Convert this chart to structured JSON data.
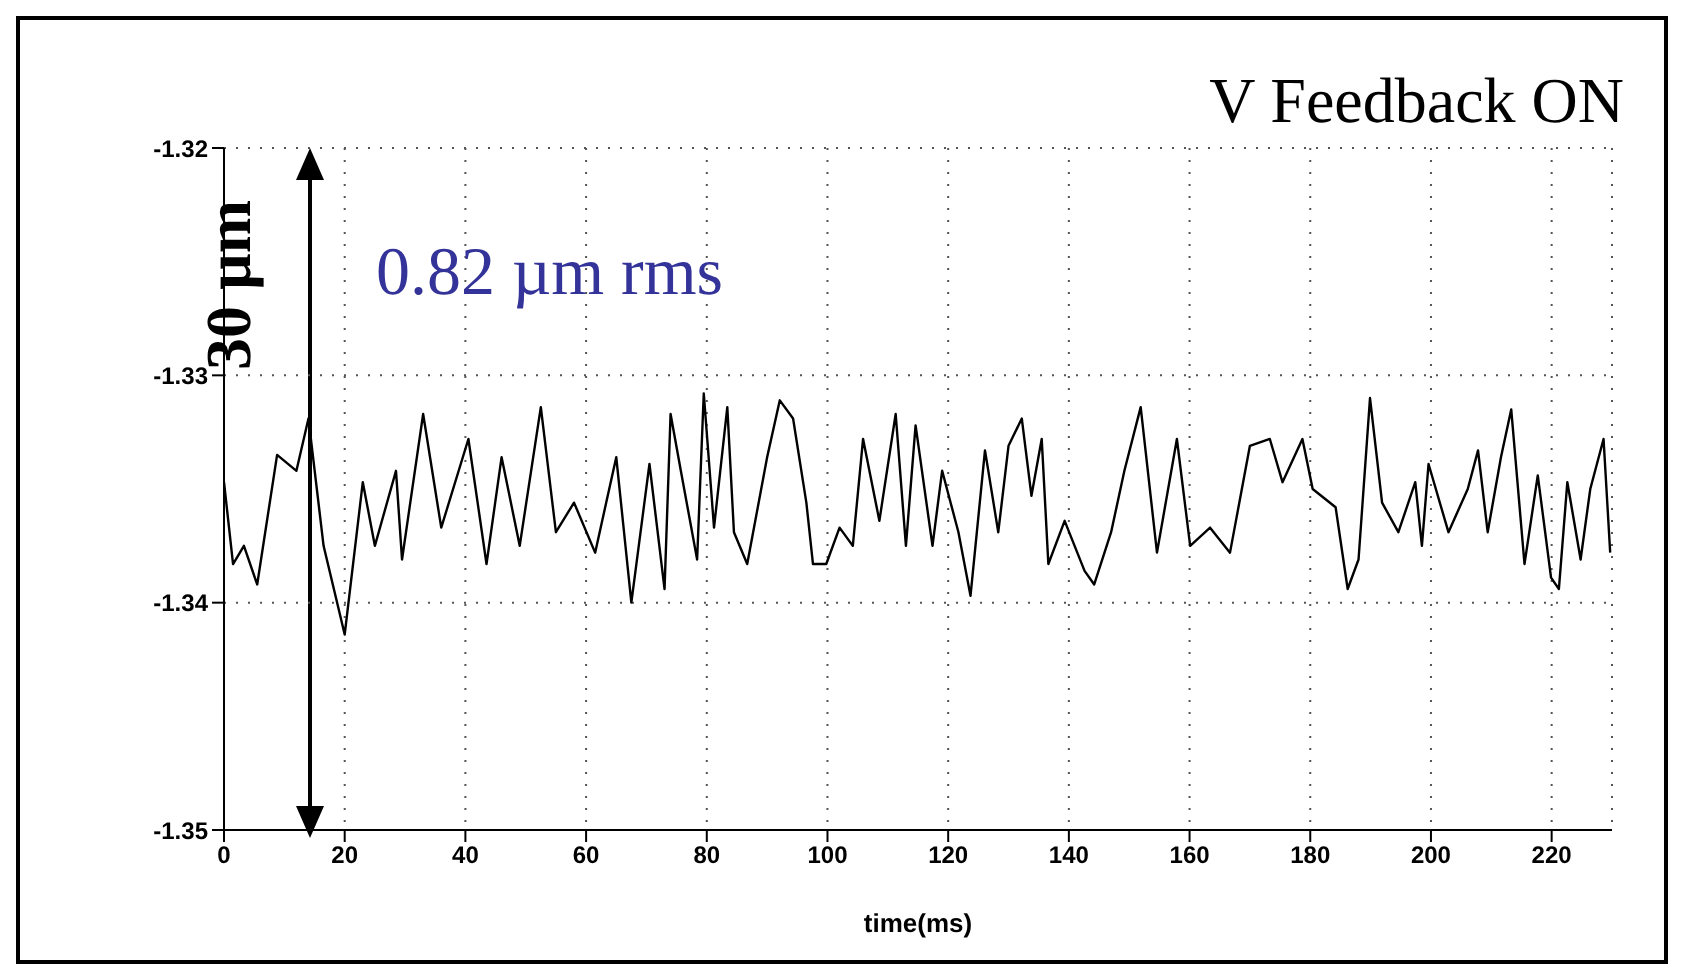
{
  "chart_data": {
    "type": "line",
    "xlabel": "time(ms)",
    "annotations": [
      "V Feedback ON",
      "0.82 µm rms",
      "30 µm"
    ],
    "x": [
      0,
      1.5,
      3.3,
      5.5,
      8.8,
      12,
      14,
      16.5,
      20,
      23,
      25,
      28.5,
      29.5,
      33,
      36,
      40.5,
      43.5,
      46,
      49,
      52.5,
      55,
      58,
      61.5,
      65,
      67.5,
      70.5,
      73,
      74,
      75.7,
      78.4,
      79.5,
      81.2,
      83.4,
      84.5,
      86.7,
      90,
      92.1,
      94.3,
      96.5,
      97.6,
      99.8,
      102,
      104.2,
      105.9,
      108.6,
      111.3,
      113,
      114.6,
      117.4,
      119,
      121.7,
      123.7,
      126.1,
      128.3,
      130,
      132.2,
      133.8,
      135.5,
      136.6,
      139.3,
      142.6,
      144.2,
      147,
      149.2,
      151.9,
      154.6,
      157.9,
      160.1,
      163.4,
      166.7,
      170,
      173.3,
      175.4,
      178.7,
      180.4,
      184.2,
      186.2,
      188,
      189.9,
      191.9,
      194.6,
      197.4,
      198.5,
      199.6,
      202.9,
      206.1,
      207.8,
      209.4,
      211.6,
      213.3,
      215.5,
      217.7,
      219.9,
      221.2,
      222.6,
      224.8,
      226.4,
      228.6,
      229.7
    ],
    "series": [
      {
        "color": "#000000",
        "values": [
          -1.3347,
          -1.3383,
          -1.3375,
          -1.3392,
          -1.3335,
          -1.3342,
          -1.3319,
          -1.3375,
          -1.3414,
          -1.3347,
          -1.3375,
          -1.3342,
          -1.3381,
          -1.3317,
          -1.3367,
          -1.3328,
          -1.3383,
          -1.3336,
          -1.3375,
          -1.3314,
          -1.3369,
          -1.3356,
          -1.3378,
          -1.3336,
          -1.34,
          -1.3339,
          -1.3394,
          -1.3317,
          -1.3342,
          -1.3381,
          -1.3308,
          -1.3367,
          -1.3314,
          -1.3369,
          -1.3383,
          -1.3336,
          -1.3311,
          -1.3319,
          -1.3356,
          -1.3383,
          -1.3383,
          -1.3367,
          -1.3375,
          -1.3328,
          -1.3364,
          -1.3317,
          -1.3375,
          -1.3322,
          -1.3375,
          -1.3342,
          -1.3369,
          -1.3397,
          -1.3333,
          -1.3369,
          -1.3331,
          -1.3319,
          -1.3353,
          -1.3328,
          -1.3383,
          -1.3364,
          -1.3386,
          -1.3392,
          -1.3369,
          -1.3342,
          -1.3314,
          -1.3378,
          -1.3328,
          -1.3375,
          -1.3367,
          -1.3378,
          -1.3331,
          -1.3328,
          -1.3347,
          -1.3328,
          -1.335,
          -1.3358,
          -1.3394,
          -1.3381,
          -1.331,
          -1.3356,
          -1.3369,
          -1.3347,
          -1.3375,
          -1.3339,
          -1.3369,
          -1.335,
          -1.3333,
          -1.3369,
          -1.3336,
          -1.3315,
          -1.3383,
          -1.3344,
          -1.3389,
          -1.3394,
          -1.3347,
          -1.3381,
          -1.335,
          -1.3328,
          -1.3378
        ]
      }
    ],
    "xlim": [
      0,
      230
    ],
    "xticks": [
      0,
      20,
      40,
      60,
      80,
      100,
      120,
      140,
      160,
      180,
      200,
      220
    ],
    "ylim": [
      -1.35,
      -1.32
    ],
    "yticks": [
      -1.35,
      -1.34,
      -1.33,
      -1.32
    ],
    "grid": true,
    "marker": "none",
    "line_style": "solid"
  }
}
